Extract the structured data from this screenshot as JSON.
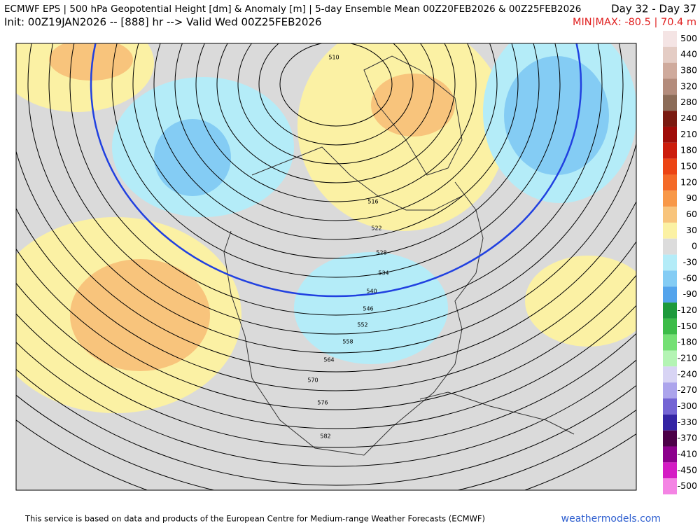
{
  "header": {
    "title": "ECMWF EPS | 500 hPa Geopotential Height [dm] & Anomaly [m] | 5-day Ensemble Mean 00Z20FEB2026 & 00Z25FEB2026",
    "days": "Day 32 - Day 37",
    "init": "Init: 00Z19JAN2026 -- [888] hr --> Valid Wed 00Z25FEB2026",
    "minmax": "MIN|MAX: -80.5 | 70.4 m"
  },
  "colorbar": [
    {
      "value": 500,
      "color": "#f4e4e4"
    },
    {
      "value": 440,
      "color": "#e4ccc4"
    },
    {
      "value": 380,
      "color": "#cfaa9c"
    },
    {
      "value": 320,
      "color": "#b48c7c"
    },
    {
      "value": 280,
      "color": "#8c6c58"
    },
    {
      "value": 240,
      "color": "#7a1a10"
    },
    {
      "value": 210,
      "color": "#a00c08"
    },
    {
      "value": 180,
      "color": "#cc1c0c"
    },
    {
      "value": 150,
      "color": "#ec4414"
    },
    {
      "value": 120,
      "color": "#f46a28"
    },
    {
      "value": 90,
      "color": "#f89848"
    },
    {
      "value": 60,
      "color": "#f8c47c"
    },
    {
      "value": 30,
      "color": "#fbf1a4"
    },
    {
      "value": 0,
      "color": "#dcdcdc"
    },
    {
      "value": -30,
      "color": "#b4ecf8"
    },
    {
      "value": -60,
      "color": "#84ccf4"
    },
    {
      "value": -90,
      "color": "#54a4ec"
    },
    {
      "value": -120,
      "color": "#1e9a3c"
    },
    {
      "value": -150,
      "color": "#3cbc48"
    },
    {
      "value": -180,
      "color": "#74e074"
    },
    {
      "value": -210,
      "color": "#b4f4b4"
    },
    {
      "value": -240,
      "color": "#d8d4f4"
    },
    {
      "value": -270,
      "color": "#aca4ec"
    },
    {
      "value": -300,
      "color": "#7464d4"
    },
    {
      "value": -330,
      "color": "#3424a4"
    },
    {
      "value": -370,
      "color": "#4c0048"
    },
    {
      "value": -410,
      "color": "#8c008c"
    },
    {
      "value": -450,
      "color": "#d41cc4"
    },
    {
      "value": -500,
      "color": "#f484e4"
    }
  ],
  "contour_labels": [
    510,
    516,
    522,
    528,
    534,
    540,
    546,
    552,
    558,
    564,
    570,
    576,
    582
  ],
  "footer": {
    "credit": "This service is based on data and products of the European Centre for Medium-range Weather Forecasts (ECMWF)",
    "site": "weathermodels.com"
  }
}
